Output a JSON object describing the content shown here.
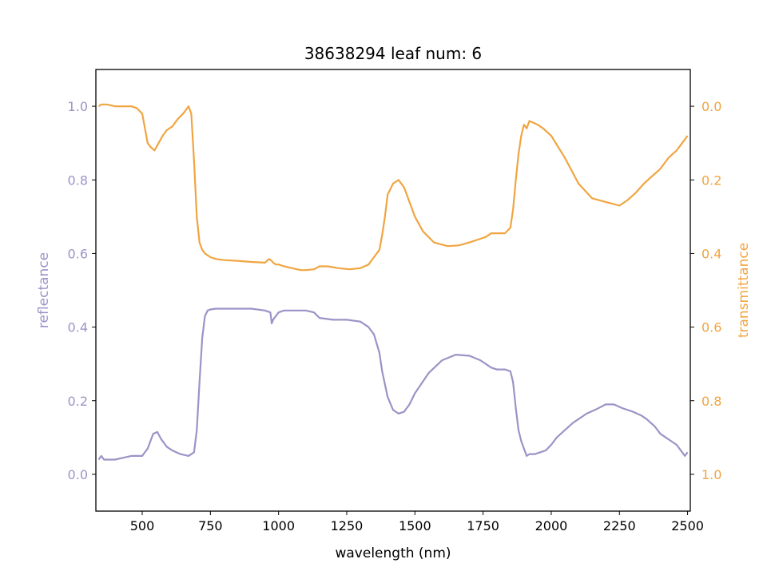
{
  "chart_data": {
    "type": "line",
    "title": "38638294 leaf num: 6",
    "xlabel": "wavelength (nm)",
    "ylabel_left": "reflectance",
    "ylabel_right": "transmittance",
    "xlim": [
      330,
      2510
    ],
    "ylim_left": [
      -0.1,
      1.1
    ],
    "ylim_right_inverted": [
      1.1,
      -0.1
    ],
    "x_ticks": [
      500,
      750,
      1000,
      1250,
      1500,
      1750,
      2000,
      2250,
      2500
    ],
    "x_tick_labels": [
      "500",
      "750",
      "1000",
      "1250",
      "1500",
      "1750",
      "2000",
      "2250",
      "2500"
    ],
    "y_left_ticks": [
      0.0,
      0.2,
      0.4,
      0.6,
      0.8,
      1.0
    ],
    "y_left_tick_labels": [
      "0.0",
      "0.2",
      "0.4",
      "0.6",
      "0.8",
      "1.0"
    ],
    "y_right_ticks": [
      0.0,
      0.2,
      0.4,
      0.6,
      0.8,
      1.0
    ],
    "y_right_tick_labels": [
      "0.0",
      "0.2",
      "0.4",
      "0.6",
      "0.8",
      "1.0"
    ],
    "grid": false,
    "colors": {
      "reflectance": "#9a94c7",
      "transmittance": "#f0a541"
    },
    "series": [
      {
        "axis": "left",
        "x": [
          340,
          350,
          360,
          380,
          400,
          430,
          460,
          500,
          520,
          540,
          555,
          570,
          590,
          610,
          640,
          670,
          690,
          700,
          710,
          720,
          730,
          740,
          750,
          770,
          800,
          850,
          900,
          950,
          970,
          975,
          980,
          990,
          1000,
          1020,
          1050,
          1100,
          1130,
          1150,
          1200,
          1250,
          1300,
          1330,
          1350,
          1370,
          1380,
          1400,
          1420,
          1440,
          1460,
          1480,
          1500,
          1550,
          1600,
          1650,
          1700,
          1740,
          1760,
          1780,
          1800,
          1830,
          1850,
          1860,
          1870,
          1880,
          1890,
          1900,
          1910,
          1920,
          1940,
          1960,
          1980,
          2000,
          2020,
          2050,
          2080,
          2100,
          2130,
          2160,
          2200,
          2230,
          2260,
          2300,
          2330,
          2350,
          2380,
          2400,
          2420,
          2440,
          2460,
          2480,
          2490,
          2500
        ],
        "values": [
          0.04,
          0.05,
          0.04,
          0.04,
          0.04,
          0.045,
          0.05,
          0.05,
          0.07,
          0.11,
          0.115,
          0.095,
          0.075,
          0.065,
          0.055,
          0.05,
          0.06,
          0.12,
          0.25,
          0.37,
          0.43,
          0.445,
          0.448,
          0.45,
          0.45,
          0.45,
          0.45,
          0.445,
          0.44,
          0.41,
          0.42,
          0.43,
          0.44,
          0.445,
          0.445,
          0.445,
          0.44,
          0.425,
          0.42,
          0.42,
          0.415,
          0.4,
          0.38,
          0.33,
          0.28,
          0.21,
          0.175,
          0.165,
          0.17,
          0.19,
          0.22,
          0.275,
          0.31,
          0.325,
          0.322,
          0.31,
          0.3,
          0.29,
          0.285,
          0.285,
          0.28,
          0.25,
          0.18,
          0.12,
          0.09,
          0.07,
          0.05,
          0.055,
          0.055,
          0.06,
          0.065,
          0.08,
          0.1,
          0.12,
          0.14,
          0.15,
          0.165,
          0.175,
          0.19,
          0.19,
          0.18,
          0.17,
          0.16,
          0.15,
          0.13,
          0.11,
          0.1,
          0.09,
          0.08,
          0.06,
          0.05,
          0.06
        ]
      },
      {
        "axis": "right",
        "x": [
          340,
          350,
          370,
          400,
          430,
          460,
          480,
          500,
          510,
          520,
          530,
          545,
          560,
          575,
          590,
          610,
          630,
          650,
          670,
          680,
          690,
          700,
          710,
          720,
          730,
          740,
          750,
          770,
          800,
          850,
          900,
          950,
          965,
          975,
          980,
          990,
          1000,
          1020,
          1050,
          1080,
          1100,
          1130,
          1150,
          1180,
          1220,
          1260,
          1300,
          1330,
          1350,
          1370,
          1380,
          1390,
          1400,
          1420,
          1440,
          1460,
          1480,
          1500,
          1530,
          1570,
          1620,
          1660,
          1700,
          1740,
          1760,
          1780,
          1800,
          1830,
          1850,
          1860,
          1870,
          1880,
          1890,
          1900,
          1910,
          1920,
          1935,
          1950,
          1970,
          2000,
          2050,
          2100,
          2150,
          2200,
          2250,
          2280,
          2310,
          2340,
          2370,
          2400,
          2430,
          2460,
          2480,
          2490,
          2500
        ],
        "values": [
          0.0,
          -0.005,
          -0.005,
          0.0,
          0.0,
          0.0,
          0.005,
          0.02,
          0.06,
          0.1,
          0.11,
          0.12,
          0.1,
          0.08,
          0.065,
          0.055,
          0.035,
          0.02,
          0.0,
          0.02,
          0.15,
          0.3,
          0.37,
          0.39,
          0.4,
          0.405,
          0.41,
          0.415,
          0.418,
          0.42,
          0.423,
          0.425,
          0.415,
          0.42,
          0.425,
          0.43,
          0.43,
          0.435,
          0.44,
          0.445,
          0.445,
          0.443,
          0.435,
          0.435,
          0.44,
          0.443,
          0.44,
          0.43,
          0.41,
          0.39,
          0.35,
          0.3,
          0.24,
          0.21,
          0.2,
          0.22,
          0.26,
          0.3,
          0.34,
          0.37,
          0.38,
          0.378,
          0.37,
          0.36,
          0.355,
          0.345,
          0.345,
          0.345,
          0.33,
          0.28,
          0.2,
          0.13,
          0.08,
          0.05,
          0.06,
          0.04,
          0.045,
          0.05,
          0.06,
          0.08,
          0.14,
          0.21,
          0.25,
          0.26,
          0.27,
          0.255,
          0.235,
          0.21,
          0.19,
          0.17,
          0.14,
          0.12,
          0.1,
          0.09,
          0.08
        ]
      }
    ]
  }
}
